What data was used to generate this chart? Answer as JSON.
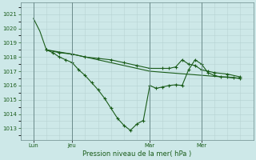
{
  "xlabel": "Pression niveau de la mer( hPa )",
  "bg_color": "#cde8e8",
  "line_color": "#1a5c1a",
  "grid_major_color": "#b8d4d4",
  "grid_minor_color": "#ccdcdc",
  "vline_color": "#6a8a8a",
  "tick_color": "#1a5c1a",
  "ylim": [
    1012.2,
    1021.8
  ],
  "yticks": [
    1013,
    1014,
    1015,
    1016,
    1017,
    1018,
    1019,
    1020,
    1021
  ],
  "xlim": [
    0,
    36
  ],
  "day_labels": [
    "Lun",
    "Jeu",
    "Mar",
    "Mer"
  ],
  "day_positions": [
    2,
    8,
    20,
    28
  ],
  "series": [
    {
      "x": [
        2,
        3,
        4
      ],
      "y": [
        1020.7,
        1019.8,
        1018.5
      ]
    },
    {
      "x": [
        4,
        6,
        8,
        10,
        12,
        14,
        16,
        18,
        20,
        22,
        23,
        24,
        25,
        26,
        27,
        28,
        29,
        30,
        32,
        34
      ],
      "y": [
        1018.5,
        1018.3,
        1018.2,
        1018.0,
        1017.9,
        1017.8,
        1017.6,
        1017.4,
        1017.2,
        1017.2,
        1017.2,
        1017.3,
        1017.8,
        1017.5,
        1017.4,
        1017.1,
        1017.0,
        1016.9,
        1016.8,
        1016.6
      ]
    },
    {
      "x": [
        4,
        8,
        20,
        34
      ],
      "y": [
        1018.5,
        1018.2,
        1017.0,
        1016.5
      ]
    },
    {
      "x": [
        4,
        5,
        6,
        7,
        8,
        9,
        10,
        11,
        12,
        13,
        14,
        15,
        16,
        17,
        18,
        19,
        20,
        21,
        22,
        23,
        24,
        25,
        26,
        27,
        28,
        29,
        30,
        31,
        32,
        33,
        34
      ],
      "y": [
        1018.5,
        1018.3,
        1018.0,
        1017.8,
        1017.6,
        1017.1,
        1016.7,
        1016.2,
        1015.7,
        1015.1,
        1014.4,
        1013.7,
        1013.2,
        1012.85,
        1013.3,
        1013.55,
        1016.0,
        1015.8,
        1015.9,
        1016.0,
        1016.05,
        1016.0,
        1017.1,
        1017.8,
        1017.5,
        1016.9,
        1016.7,
        1016.6,
        1016.6,
        1016.55,
        1016.5
      ]
    }
  ]
}
